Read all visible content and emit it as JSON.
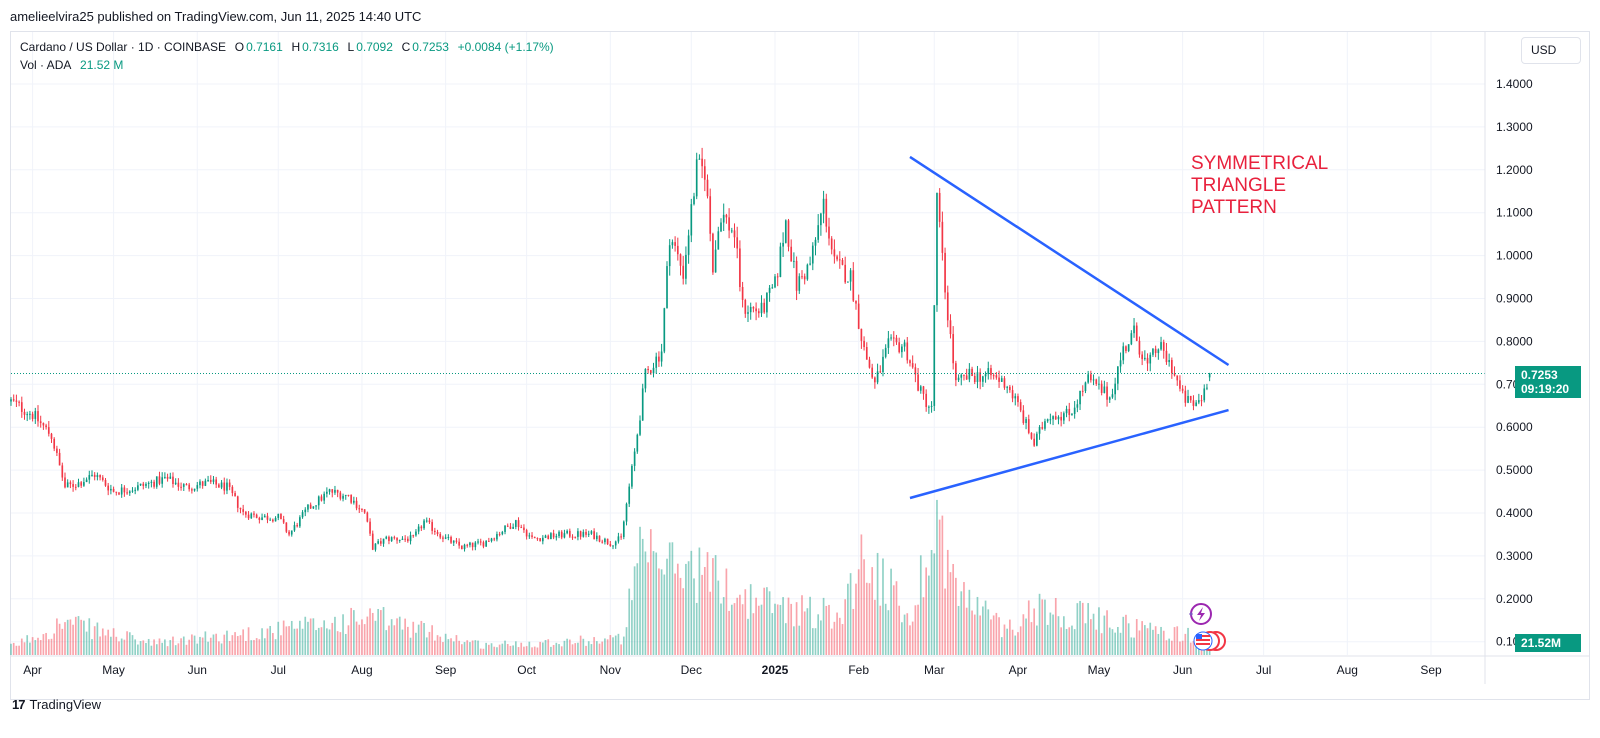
{
  "publisher_line": "amelieelvira25 published on TradingView.com, Jun 11, 2025 14:40 UTC",
  "legend": {
    "symbol": "Cardano / US Dollar · 1D · COINBASE",
    "o_label": "O",
    "o_value": "0.7161",
    "h_label": "H",
    "h_value": "0.7316",
    "l_label": "L",
    "l_value": "0.7092",
    "c_label": "C",
    "c_value": "0.7253",
    "change": "+0.0084 (+1.17%)",
    "vol_label": "Vol · ADA",
    "vol_value": "21.52 M"
  },
  "currency_button": "USD",
  "last_price": {
    "price": "0.7253",
    "countdown": "09:19:20"
  },
  "volume_tag": "21.52M",
  "annotation": [
    "SYMMETRICAL",
    "TRIANGLE",
    "PATTERN"
  ],
  "branding": {
    "logo": "17",
    "name": "TradingView"
  },
  "colors": {
    "up": "#089981",
    "down": "#f23645",
    "trendline": "#2962ff",
    "annotation": "#e8213d"
  },
  "icons": [
    "lightning-icon",
    "us-flag-icon"
  ],
  "chart_data": {
    "type": "candlestick",
    "title": "Cardano / US Dollar · 1D · COINBASE",
    "y_ticks": [
      "1.4000",
      "1.3000",
      "1.2000",
      "1.1000",
      "1.0000",
      "0.9000",
      "0.8000",
      "0.7000",
      "0.6000",
      "0.5000",
      "0.4000",
      "0.3000",
      "0.2000",
      "0.1000"
    ],
    "ylim": [
      0.09,
      1.46
    ],
    "x_ticks": [
      {
        "label": "Apr",
        "date": "2024-04-01"
      },
      {
        "label": "May",
        "date": "2024-05-01"
      },
      {
        "label": "Jun",
        "date": "2024-06-01"
      },
      {
        "label": "Jul",
        "date": "2024-07-01"
      },
      {
        "label": "Aug",
        "date": "2024-08-01"
      },
      {
        "label": "Sep",
        "date": "2024-09-01"
      },
      {
        "label": "Oct",
        "date": "2024-10-01"
      },
      {
        "label": "Nov",
        "date": "2024-11-01"
      },
      {
        "label": "Dec",
        "date": "2024-12-01"
      },
      {
        "label": "2025",
        "date": "2025-01-01",
        "bold": true
      },
      {
        "label": "Feb",
        "date": "2025-02-01"
      },
      {
        "label": "Mar",
        "date": "2025-03-01"
      },
      {
        "label": "Apr",
        "date": "2025-04-01"
      },
      {
        "label": "May",
        "date": "2025-05-01"
      },
      {
        "label": "Jun",
        "date": "2025-06-01"
      },
      {
        "label": "Jul",
        "date": "2025-07-01"
      },
      {
        "label": "Aug",
        "date": "2025-08-01"
      },
      {
        "label": "Sep",
        "date": "2025-09-01"
      }
    ],
    "x_range": [
      "2024-03-24",
      "2025-09-21"
    ],
    "price_path": [
      [
        "2024-03-24",
        0.66
      ],
      [
        "2024-04-01",
        0.63
      ],
      [
        "2024-04-08",
        0.58
      ],
      [
        "2024-04-13",
        0.46
      ],
      [
        "2024-04-18",
        0.47
      ],
      [
        "2024-04-24",
        0.49
      ],
      [
        "2024-05-01",
        0.45
      ],
      [
        "2024-05-10",
        0.46
      ],
      [
        "2024-05-20",
        0.48
      ],
      [
        "2024-05-28",
        0.46
      ],
      [
        "2024-06-05",
        0.47
      ],
      [
        "2024-06-12",
        0.46
      ],
      [
        "2024-06-18",
        0.4
      ],
      [
        "2024-06-25",
        0.39
      ],
      [
        "2024-07-01",
        0.39
      ],
      [
        "2024-07-05",
        0.35
      ],
      [
        "2024-07-12",
        0.41
      ],
      [
        "2024-07-20",
        0.45
      ],
      [
        "2024-07-27",
        0.44
      ],
      [
        "2024-08-02",
        0.4
      ],
      [
        "2024-08-05",
        0.32
      ],
      [
        "2024-08-10",
        0.34
      ],
      [
        "2024-08-20",
        0.34
      ],
      [
        "2024-08-24",
        0.38
      ],
      [
        "2024-09-01",
        0.34
      ],
      [
        "2024-09-07",
        0.32
      ],
      [
        "2024-09-15",
        0.33
      ],
      [
        "2024-09-27",
        0.38
      ],
      [
        "2024-10-03",
        0.34
      ],
      [
        "2024-10-15",
        0.35
      ],
      [
        "2024-10-25",
        0.35
      ],
      [
        "2024-11-01",
        0.33
      ],
      [
        "2024-11-05",
        0.34
      ],
      [
        "2024-11-10",
        0.54
      ],
      [
        "2024-11-14",
        0.72
      ],
      [
        "2024-11-20",
        0.78
      ],
      [
        "2024-11-23",
        1.05
      ],
      [
        "2024-11-28",
        0.96
      ],
      [
        "2024-12-03",
        1.2
      ],
      [
        "2024-12-06",
        1.2
      ],
      [
        "2024-12-09",
        0.98
      ],
      [
        "2024-12-12",
        1.1
      ],
      [
        "2024-12-17",
        1.05
      ],
      [
        "2024-12-20",
        0.88
      ],
      [
        "2024-12-27",
        0.87
      ],
      [
        "2025-01-01",
        0.93
      ],
      [
        "2025-01-05",
        1.08
      ],
      [
        "2025-01-09",
        0.93
      ],
      [
        "2025-01-14",
        0.98
      ],
      [
        "2025-01-19",
        1.12
      ],
      [
        "2025-01-23",
        0.98
      ],
      [
        "2025-01-29",
        0.95
      ],
      [
        "2025-02-03",
        0.78
      ],
      [
        "2025-02-07",
        0.7
      ],
      [
        "2025-02-12",
        0.79
      ],
      [
        "2025-02-18",
        0.79
      ],
      [
        "2025-02-24",
        0.68
      ],
      [
        "2025-02-28",
        0.64
      ],
      [
        "2025-03-02",
        1.13
      ],
      [
        "2025-03-05",
        0.92
      ],
      [
        "2025-03-09",
        0.7
      ],
      [
        "2025-03-14",
        0.72
      ],
      [
        "2025-03-22",
        0.72
      ],
      [
        "2025-03-28",
        0.7
      ],
      [
        "2025-04-01",
        0.65
      ],
      [
        "2025-04-07",
        0.56
      ],
      [
        "2025-04-12",
        0.63
      ],
      [
        "2025-04-20",
        0.63
      ],
      [
        "2025-04-27",
        0.71
      ],
      [
        "2025-05-05",
        0.67
      ],
      [
        "2025-05-10",
        0.78
      ],
      [
        "2025-05-14",
        0.82
      ],
      [
        "2025-05-19",
        0.74
      ],
      [
        "2025-05-23",
        0.79
      ],
      [
        "2025-05-28",
        0.74
      ],
      [
        "2025-06-01",
        0.67
      ],
      [
        "2025-06-05",
        0.65
      ],
      [
        "2025-06-08",
        0.67
      ],
      [
        "2025-06-11",
        0.7253
      ]
    ],
    "volume_path": [
      [
        "2024-03-24",
        0.05
      ],
      [
        "2024-04-13",
        0.2
      ],
      [
        "2024-05-15",
        0.07
      ],
      [
        "2024-07-05",
        0.16
      ],
      [
        "2024-08-05",
        0.23
      ],
      [
        "2024-09-15",
        0.06
      ],
      [
        "2024-11-05",
        0.1
      ],
      [
        "2024-11-12",
        0.58
      ],
      [
        "2024-11-22",
        0.55
      ],
      [
        "2024-12-05",
        0.52
      ],
      [
        "2024-12-20",
        0.35
      ],
      [
        "2025-01-10",
        0.28
      ],
      [
        "2025-01-25",
        0.25
      ],
      [
        "2025-02-03",
        0.62
      ],
      [
        "2025-02-20",
        0.22
      ],
      [
        "2025-03-02",
        0.85
      ],
      [
        "2025-03-09",
        0.4
      ],
      [
        "2025-03-28",
        0.15
      ],
      [
        "2025-04-07",
        0.3
      ],
      [
        "2025-05-12",
        0.18
      ],
      [
        "2025-06-11",
        0.1
      ]
    ],
    "trendlines": [
      {
        "name": "upper",
        "from": [
          "2025-02-20",
          1.23
        ],
        "to": [
          "2025-06-18",
          0.745
        ]
      },
      {
        "name": "lower",
        "from": [
          "2025-02-20",
          0.435
        ],
        "to": [
          "2025-06-18",
          0.64
        ]
      }
    ],
    "current_price": 0.7253,
    "grid": true
  }
}
